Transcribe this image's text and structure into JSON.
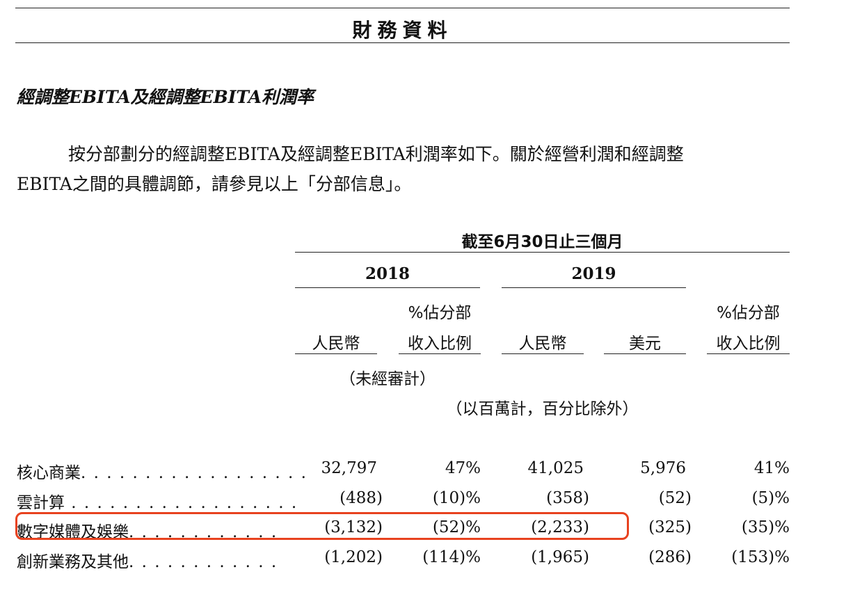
{
  "page_header": "財務資料",
  "section_heading": "經調整EBITA及經調整EBITA利潤率",
  "paragraph": {
    "line1": "按分部劃分的經調整EBITA及經調整EBITA利潤率如下。關於經營利潤和經調整",
    "line2": "EBITA之間的具體調節，請參見以上「分部信息」。"
  },
  "table": {
    "period_header": "截至6月30日止三個月",
    "years": [
      "2018",
      "2019"
    ],
    "col_headers": {
      "rmb_2018": "人民幣",
      "pct_2018_line1": "%佔分部",
      "pct_2018_line2": "收入比例",
      "rmb_2019": "人民幣",
      "usd_2019": "美元",
      "pct_2019_line1": "%佔分部",
      "pct_2019_line2": "收入比例"
    },
    "unaudited_note": "（未經審計）",
    "unit_note": "（以百萬計，百分比除外）",
    "rows": [
      {
        "label": "核心商業",
        "leader": ". . . . . . . . . . . . . . . . . .",
        "rmb_2018": "32,797",
        "pct_2018": "47%",
        "rmb_2019": "41,025",
        "usd_2019": "5,976",
        "pct_2019": "41%"
      },
      {
        "label": "雲計算",
        "leader": " . . . . . . . . . . . . . . . . . .",
        "rmb_2018": "(488)",
        "pct_2018": "(10)%",
        "rmb_2019": "(358)",
        "usd_2019": "(52)",
        "pct_2019": "(5)%"
      },
      {
        "label": "數字媒體及娛樂",
        "leader": ". . . . . . . . . . . .",
        "rmb_2018": "(3,132)",
        "pct_2018": "(52)%",
        "rmb_2019": "(2,233)",
        "usd_2019": "(325)",
        "pct_2019": "(35)%",
        "highlighted": true
      },
      {
        "label": "創新業務及其他",
        "leader": ". . . . . . . . . . . .",
        "rmb_2018": "(1,202)",
        "pct_2018": "(114)%",
        "rmb_2019": "(1,965)",
        "usd_2019": "(286)",
        "pct_2019": "(153)%"
      }
    ]
  },
  "colors": {
    "text": "#111111",
    "rule": "#222222",
    "highlight_border": "#e8421f"
  }
}
